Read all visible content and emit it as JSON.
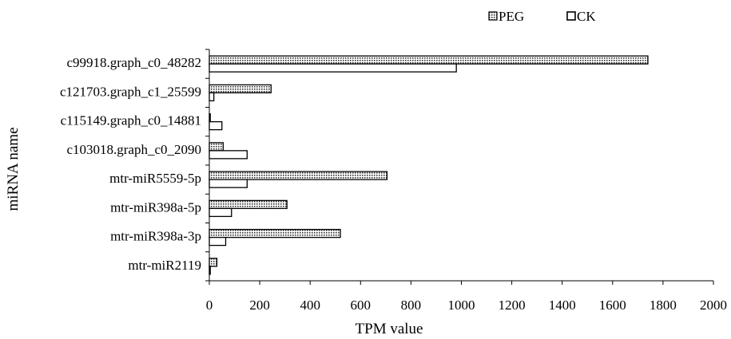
{
  "chart_data": {
    "type": "bar",
    "orientation": "horizontal",
    "xlabel": "TPM value",
    "ylabel": "miRNA name",
    "xlim": [
      0,
      2000
    ],
    "x_ticks": [
      "0",
      "200",
      "400",
      "600",
      "800",
      "1000",
      "1200",
      "1400",
      "1600",
      "1800",
      "2000"
    ],
    "grid": false,
    "legend_position": "top-right",
    "categories": [
      "c99918.graph_c0_48282",
      "c121703.graph_c1_25599",
      "c115149.graph_c0_14881",
      "c103018.graph_c0_2090",
      "mtr-miR5559-5p",
      "mtr-miR398a-5p",
      "mtr-miR398a-3p",
      "mtr-miR2119"
    ],
    "series": [
      {
        "name": "PEG",
        "pattern": "dotted",
        "values": [
          1740,
          245,
          2,
          55,
          705,
          308,
          520,
          30
        ]
      },
      {
        "name": "CK",
        "pattern": "hollow",
        "values": [
          980,
          18,
          50,
          150,
          150,
          88,
          65,
          3
        ]
      }
    ]
  }
}
